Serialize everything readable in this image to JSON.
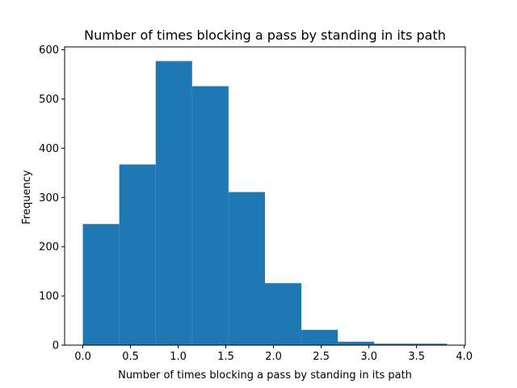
{
  "chart_data": {
    "type": "bar",
    "subtype": "histogram",
    "title": "Number of times blocking a pass by standing in its path",
    "xlabel": "Number of times blocking a pass by standing in its path",
    "ylabel": "Frequency",
    "bin_edges": [
      0.0,
      0.382,
      0.764,
      1.146,
      1.528,
      1.91,
      2.292,
      2.674,
      3.056,
      3.438,
      3.82
    ],
    "values": [
      246,
      367,
      577,
      526,
      311,
      126,
      31,
      7,
      3,
      3
    ],
    "xlim": [
      -0.191,
      4.011
    ],
    "ylim": [
      0,
      605.85
    ],
    "xticks": [
      0.0,
      0.5,
      1.0,
      1.5,
      2.0,
      2.5,
      3.0,
      3.5,
      4.0
    ],
    "xtick_labels": [
      "0.0",
      "0.5",
      "1.0",
      "1.5",
      "2.0",
      "2.5",
      "3.0",
      "3.5",
      "4.0"
    ],
    "yticks": [
      0,
      100,
      200,
      300,
      400,
      500,
      600
    ],
    "ytick_labels": [
      "0",
      "100",
      "200",
      "300",
      "400",
      "500",
      "600"
    ],
    "bar_color": "#1f77b4",
    "grid": false,
    "legend": "none"
  }
}
